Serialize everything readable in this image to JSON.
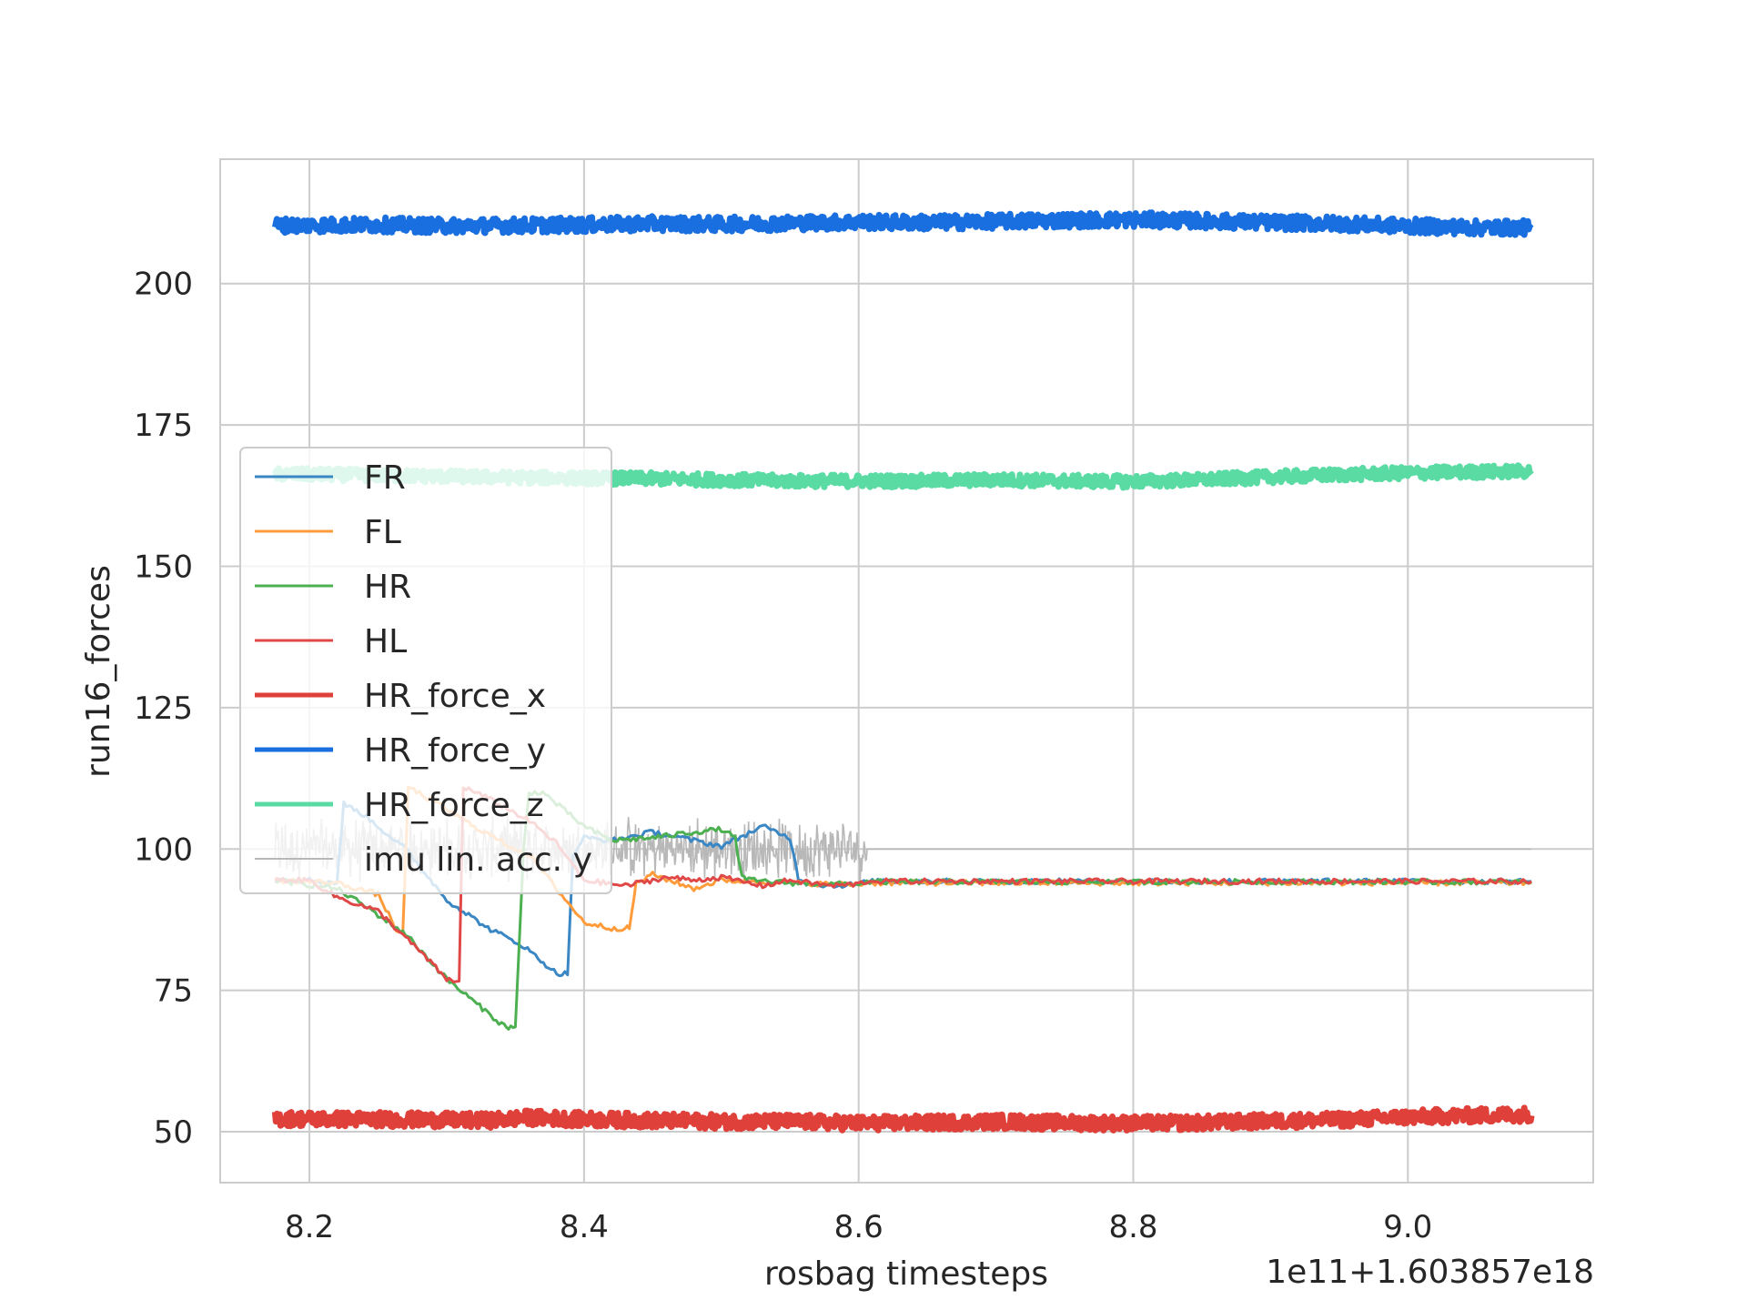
{
  "chart_data": {
    "type": "line",
    "title": "",
    "xlabel": "rosbag timesteps",
    "ylabel": "run16_forces",
    "x_offset_label": "1e11+1.603857e18",
    "xlim": [
      8.135,
      9.135
    ],
    "ylim": [
      41,
      222
    ],
    "xticks": [
      8.2,
      8.4,
      8.6,
      8.8,
      9.0
    ],
    "xtick_labels": [
      "8.2",
      "8.4",
      "8.6",
      "8.8",
      "9.0"
    ],
    "yticks": [
      50,
      75,
      100,
      125,
      150,
      175,
      200
    ],
    "ytick_labels": [
      "50",
      "75",
      "100",
      "125",
      "150",
      "175",
      "200"
    ],
    "grid": true,
    "legend_position": "center-left",
    "series": [
      {
        "name": "FR",
        "color": "#3a87c4",
        "style": "thin",
        "x": [
          8.175,
          8.2,
          8.22,
          8.225,
          8.24,
          8.27,
          8.3,
          8.33,
          8.355,
          8.38,
          8.388,
          8.392,
          8.4,
          8.42,
          8.45,
          8.48,
          8.5,
          8.53,
          8.55,
          8.556,
          8.562,
          8.58,
          8.6,
          8.606,
          8.62,
          8.7,
          8.8,
          8.9,
          9.0,
          9.09
        ],
        "y": [
          94.5,
          94.5,
          94.0,
          108.0,
          106.0,
          100.0,
          91.0,
          86.0,
          83.0,
          78.0,
          78.0,
          99.0,
          102.0,
          101.5,
          103.0,
          101.5,
          100.5,
          104.0,
          102.0,
          95.0,
          94.0,
          93.5,
          93.8,
          94.2,
          94.3,
          94.3,
          94.3,
          94.3,
          94.3,
          94.3
        ]
      },
      {
        "name": "FL",
        "color": "#ff9b3a",
        "style": "thin",
        "x": [
          8.175,
          8.22,
          8.25,
          8.265,
          8.268,
          8.272,
          8.3,
          8.32,
          8.35,
          8.36,
          8.38,
          8.4,
          8.42,
          8.43,
          8.433,
          8.438,
          8.45,
          8.48,
          8.5,
          8.55,
          8.58,
          8.6,
          8.606,
          8.62,
          8.7,
          8.8,
          8.9,
          9.0,
          9.09
        ],
        "y": [
          94.5,
          94.0,
          92.0,
          85.0,
          85.0,
          111.0,
          107.0,
          104.0,
          100.0,
          99.0,
          93.0,
          87.0,
          86.0,
          86.0,
          86.0,
          94.0,
          95.5,
          93.0,
          94.5,
          94.0,
          93.8,
          93.8,
          94.0,
          94.0,
          94.0,
          94.0,
          94.0,
          94.0,
          94.0
        ]
      },
      {
        "name": "HR",
        "color": "#4caf50",
        "style": "thin",
        "x": [
          8.175,
          8.22,
          8.24,
          8.27,
          8.3,
          8.32,
          8.34,
          8.345,
          8.35,
          8.356,
          8.36,
          8.37,
          8.4,
          8.42,
          8.45,
          8.48,
          8.5,
          8.51,
          8.515,
          8.52,
          8.55,
          8.58,
          8.6,
          8.606,
          8.62,
          8.7,
          8.8,
          8.9,
          9.0,
          9.09
        ],
        "y": [
          94.5,
          93.0,
          90.0,
          85.0,
          77.0,
          73.0,
          69.0,
          68.5,
          68.5,
          100.0,
          110.0,
          110.0,
          104.0,
          101.5,
          102.0,
          103.0,
          103.5,
          102.0,
          95.0,
          94.5,
          94.0,
          93.8,
          93.8,
          94.2,
          94.2,
          94.2,
          94.2,
          94.2,
          94.2,
          94.2
        ]
      },
      {
        "name": "HL",
        "color": "#e04848",
        "style": "thin",
        "x": [
          8.175,
          8.2,
          8.22,
          8.25,
          8.28,
          8.3,
          8.305,
          8.309,
          8.312,
          8.33,
          8.36,
          8.38,
          8.4,
          8.43,
          8.46,
          8.48,
          8.5,
          8.53,
          8.55,
          8.58,
          8.6,
          8.606,
          8.62,
          8.7,
          8.8,
          8.9,
          9.0,
          9.09
        ],
        "y": [
          94.5,
          94.5,
          91.5,
          89.0,
          82.0,
          77.0,
          76.5,
          76.5,
          111.0,
          109.0,
          105.0,
          101.0,
          94.5,
          93.5,
          95.0,
          94.5,
          95.0,
          93.5,
          94.5,
          93.5,
          93.8,
          94.3,
          94.3,
          94.3,
          94.3,
          94.3,
          94.3,
          94.3
        ]
      },
      {
        "name": "HR_force_x",
        "color": "#e0403a",
        "style": "thick",
        "x": [
          8.175,
          8.25,
          8.33,
          8.36,
          8.4,
          8.45,
          8.5,
          8.55,
          8.6,
          8.65,
          8.7,
          8.75,
          8.8,
          8.85,
          8.9,
          8.95,
          9.0,
          9.05,
          9.09
        ],
        "y": [
          52.3,
          52.2,
          52.0,
          52.5,
          52.2,
          52.0,
          51.8,
          51.8,
          51.5,
          51.6,
          51.8,
          51.6,
          51.5,
          51.6,
          51.9,
          52.1,
          52.6,
          52.9,
          53.1
        ],
        "noise_amplitude": 1.3
      },
      {
        "name": "HR_force_y",
        "color": "#1a6fe0",
        "style": "thick",
        "x": [
          8.175,
          8.25,
          8.3,
          8.4,
          8.45,
          8.5,
          8.55,
          8.6,
          8.65,
          8.7,
          8.75,
          8.8,
          8.85,
          8.9,
          8.95,
          9.0,
          9.05,
          9.09
        ],
        "y": [
          210.3,
          210.4,
          210.2,
          210.4,
          210.6,
          210.5,
          210.7,
          210.9,
          210.8,
          211.0,
          211.2,
          211.3,
          211.1,
          210.8,
          210.6,
          210.2,
          209.9,
          209.9
        ],
        "noise_amplitude": 1.3
      },
      {
        "name": "HR_force_z",
        "color": "#5adba4",
        "style": "thick",
        "x": [
          8.175,
          8.25,
          8.3,
          8.35,
          8.4,
          8.45,
          8.5,
          8.55,
          8.6,
          8.65,
          8.7,
          8.75,
          8.8,
          8.85,
          8.9,
          8.95,
          9.0,
          9.05,
          9.09
        ],
        "y": [
          166.3,
          166.1,
          165.9,
          165.7,
          165.6,
          165.5,
          165.3,
          165.1,
          165.1,
          165.1,
          165.3,
          165.1,
          165.0,
          165.3,
          165.8,
          166.2,
          166.5,
          166.7,
          166.8
        ],
        "noise_amplitude": 1.1
      },
      {
        "name": "imu lin. acc. y",
        "color": "#b8b8b8",
        "style": "noise",
        "x": [
          8.175,
          8.22,
          8.3,
          8.4,
          8.5,
          8.56,
          8.6,
          8.606,
          9.09
        ],
        "y": [
          100,
          100,
          100,
          100,
          100,
          100,
          100,
          100,
          100
        ],
        "noise_amplitude": 4.5,
        "noise_until": 8.606
      }
    ]
  }
}
